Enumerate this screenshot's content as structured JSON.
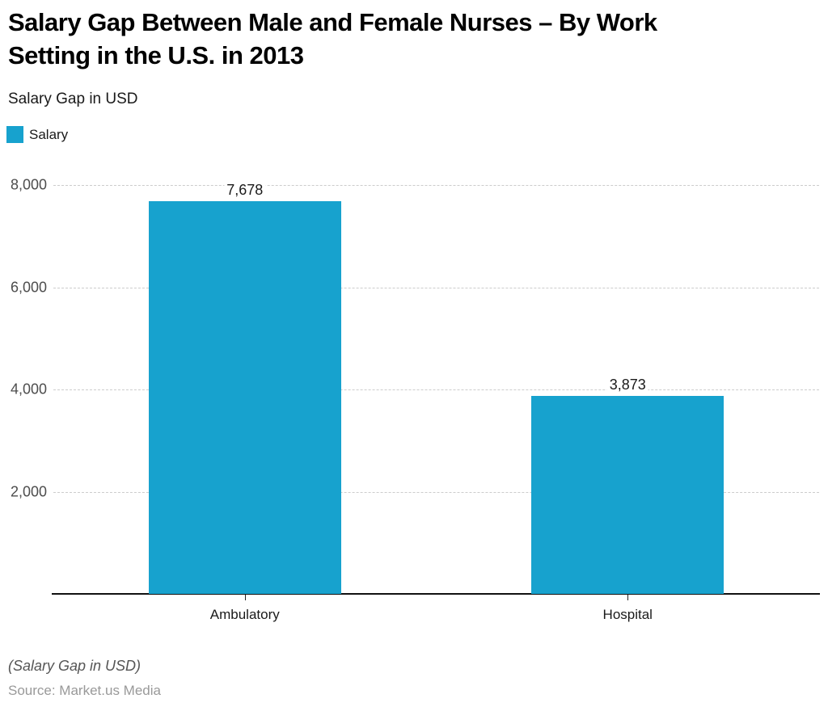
{
  "chart_data": {
    "type": "bar",
    "title": "Salary Gap Between Male and Female Nurses – By Work\nSetting in the U.S. in 2013",
    "subtitle": "Salary Gap in USD",
    "categories": [
      "Ambulatory",
      "Hospital"
    ],
    "series": [
      {
        "name": "Salary",
        "values": [
          7678,
          3873
        ],
        "data_labels": [
          "7,678",
          "3,873"
        ],
        "color": "#17a2ce"
      }
    ],
    "ylim": [
      0,
      8000
    ],
    "yticks": [
      {
        "value": 2000,
        "label": "2,000"
      },
      {
        "value": 4000,
        "label": "4,000"
      },
      {
        "value": 6000,
        "label": "6,000"
      },
      {
        "value": 8000,
        "label": "8,000"
      }
    ],
    "grid": "horizontal-dashed",
    "legend_position": "top-left"
  },
  "footer": {
    "note": "(Salary Gap in USD)",
    "source": "Source: Market.us Media"
  },
  "colors": {
    "accent": "#17a2ce",
    "gridline": "#cccccc",
    "axis": "#111111",
    "ylabel": "#4d4d4d",
    "text": "#1a1a1a",
    "source": "#999999"
  }
}
